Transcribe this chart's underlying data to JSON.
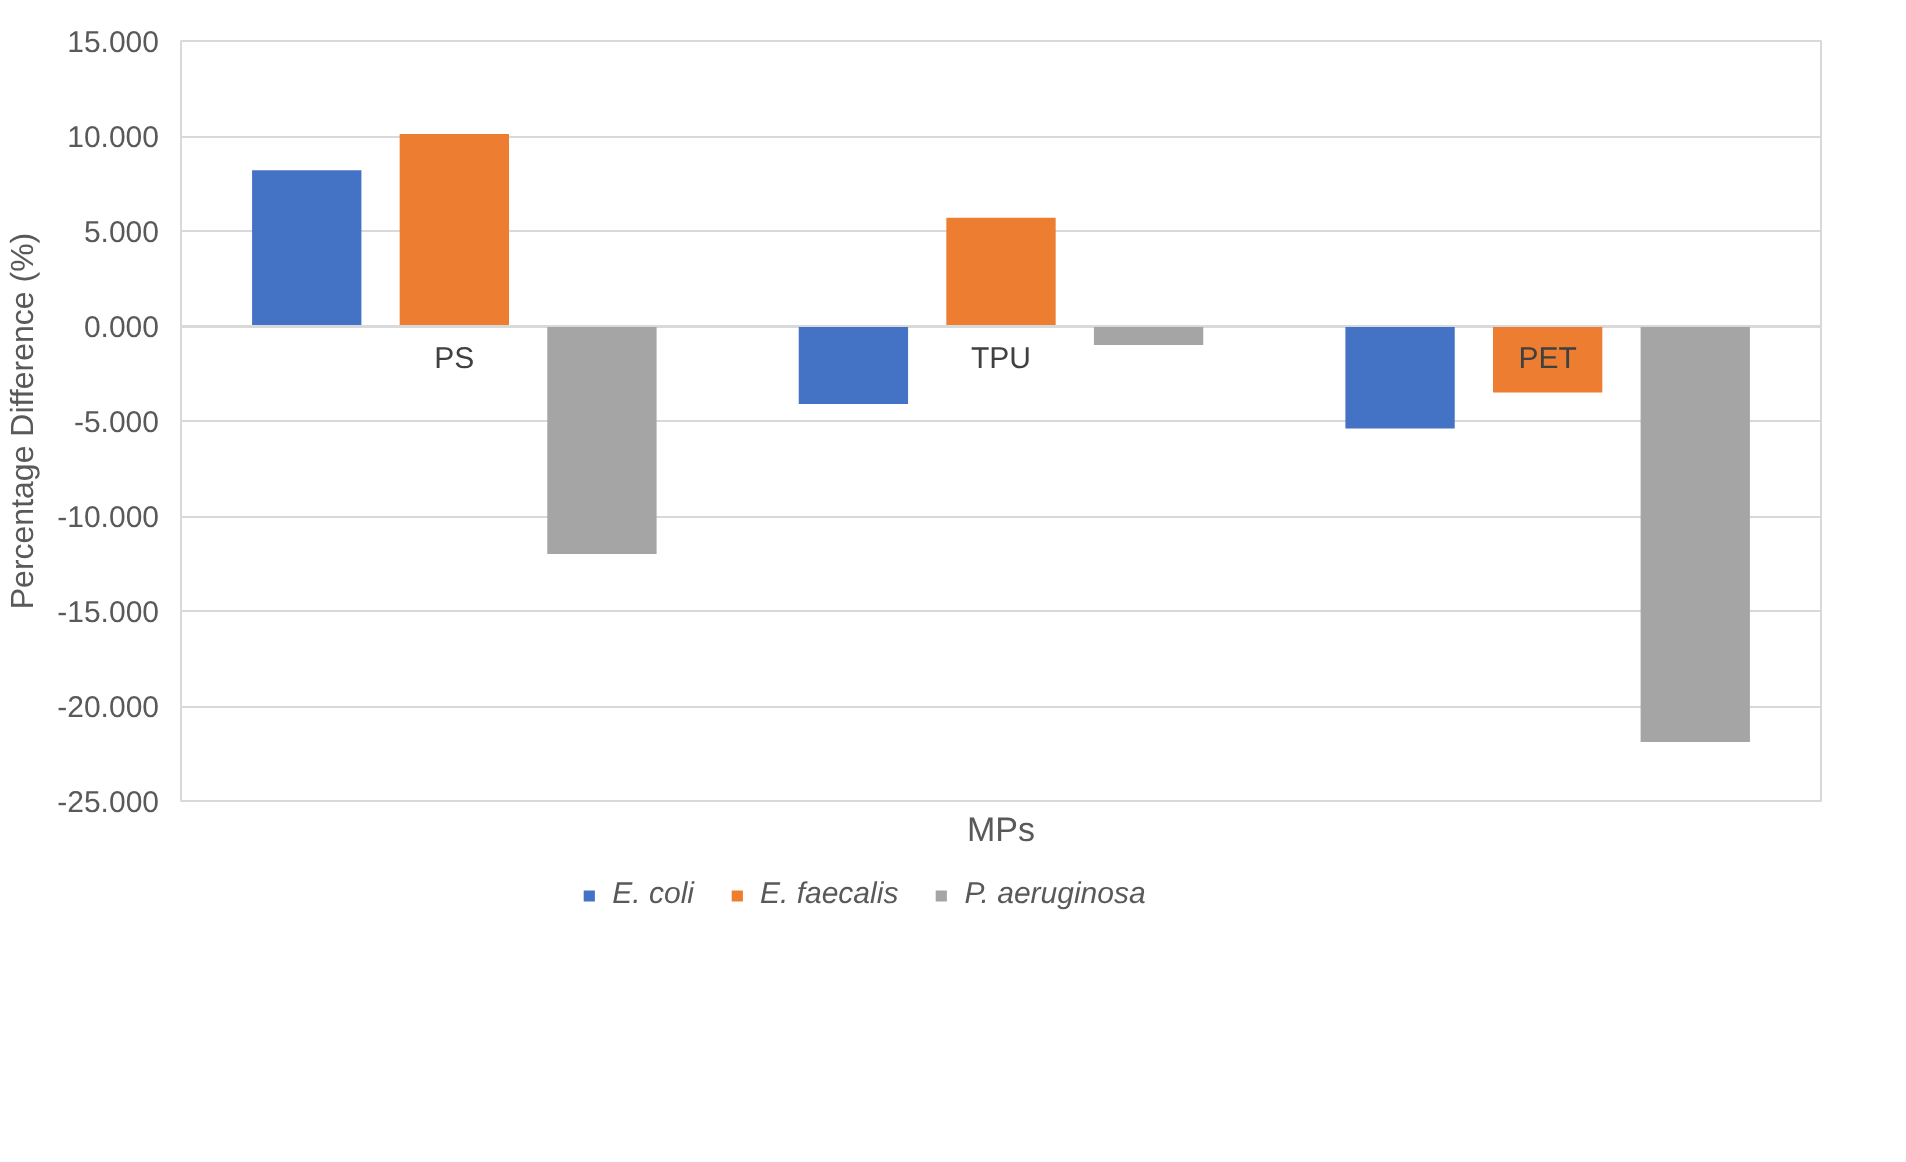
{
  "chart_data": {
    "type": "bar",
    "xlabel": "MPs",
    "ylabel": "Percentage Difference (%)",
    "categories": [
      "PS",
      "TPU",
      "PET"
    ],
    "series": [
      {
        "name": "E. coli",
        "color": "#4472c4",
        "values": [
          8.2,
          -4.1,
          -5.4
        ]
      },
      {
        "name": "E. faecalis",
        "color": "#ed7d31",
        "values": [
          10.1,
          5.7,
          -3.5
        ]
      },
      {
        "name": "P. aeruginosa",
        "color": "#a5a5a5",
        "values": [
          -12.0,
          -1.0,
          -21.9
        ]
      }
    ],
    "ylim": [
      -25,
      15
    ],
    "yticks": [
      {
        "value": -25,
        "label": "-25.000"
      },
      {
        "value": -20,
        "label": "-20.000"
      },
      {
        "value": -15,
        "label": "-15.000"
      },
      {
        "value": -10,
        "label": "-10.000"
      },
      {
        "value": -5,
        "label": "-5.000"
      },
      {
        "value": 0,
        "label": "0.000"
      },
      {
        "value": 5,
        "label": "5.000"
      },
      {
        "value": 10,
        "label": "10.000"
      },
      {
        "value": 15,
        "label": "15.000"
      }
    ],
    "grid": "y",
    "legend": "bottom"
  }
}
